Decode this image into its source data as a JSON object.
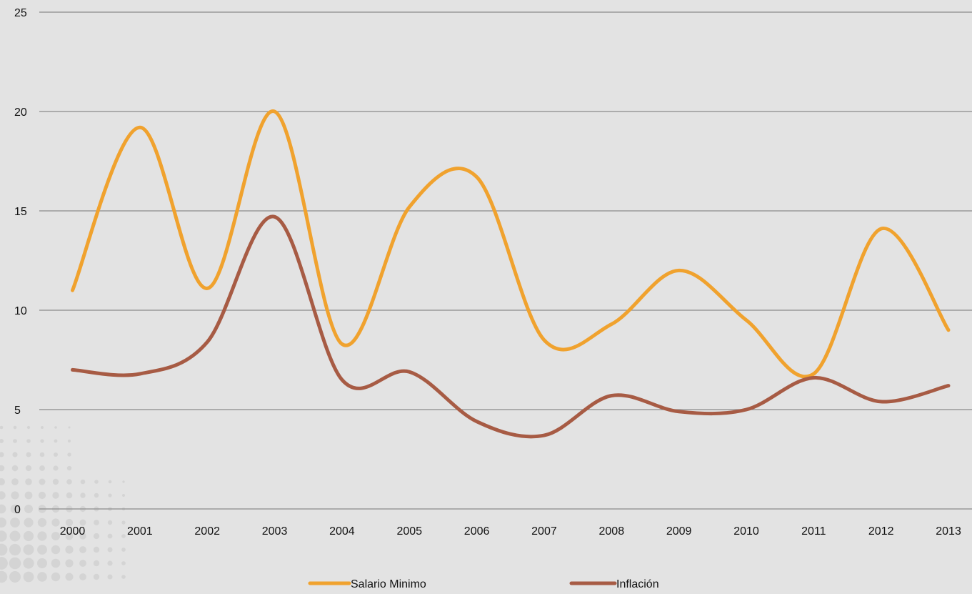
{
  "chart_data": {
    "type": "line",
    "title": "",
    "xlabel": "",
    "ylabel": "",
    "x": [
      "2000",
      "2001",
      "2002",
      "2003",
      "2004",
      "2005",
      "2006",
      "2007",
      "2008",
      "2009",
      "2010",
      "2011",
      "2012",
      "2013"
    ],
    "ylim": [
      0,
      25
    ],
    "yticks": [
      "0",
      "5",
      "10",
      "15",
      "20",
      "25"
    ],
    "grid": true,
    "smooth": true,
    "legend_position": "bottom",
    "series": [
      {
        "name": "Salario Minimo",
        "color": "#f0a22e",
        "values": [
          11.0,
          19.2,
          11.1,
          20.0,
          8.3,
          15.2,
          16.7,
          8.5,
          9.3,
          12.0,
          9.5,
          6.8,
          14.1,
          9.0
        ]
      },
      {
        "name": "Inflación",
        "color": "#a75b44",
        "values": [
          7.0,
          6.8,
          8.4,
          14.7,
          6.5,
          6.9,
          4.4,
          3.7,
          5.7,
          4.9,
          5.0,
          6.6,
          5.4,
          6.2
        ]
      }
    ]
  },
  "colors": {
    "background": "#e3e3e3",
    "gridline": "#8c8c8c",
    "text": "#111111",
    "decoration": "#d4d4d4"
  },
  "decoration_icon": "halftone-dots-pattern"
}
